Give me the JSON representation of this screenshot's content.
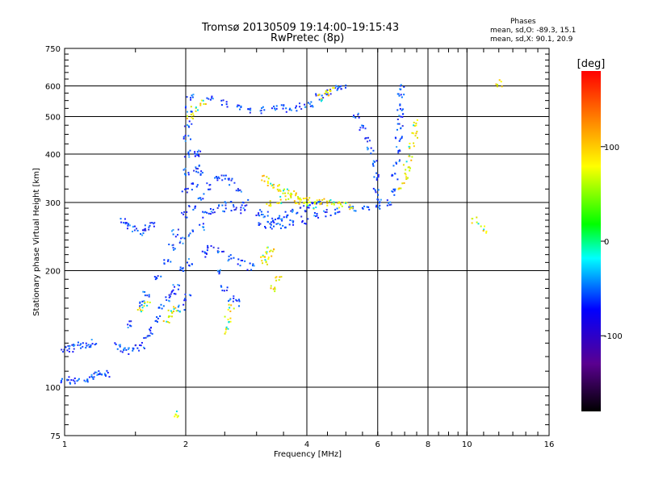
{
  "title": "Tromsø 20130509 19:14:00–19:15:43",
  "subtitle": "RwPretec (8p)",
  "stats": {
    "heading": "Phases",
    "o_line": "mean, sd,O: -89.3, 15.1",
    "x_line": "mean, sd,X:  90.1, 20.9"
  },
  "chart_data": {
    "type": "scatter",
    "xlabel": "Frequency [MHz]",
    "ylabel": "Stationary phase Virtual Height [km]",
    "x_scale": "log",
    "y_scale": "log",
    "xlim": [
      1,
      16
    ],
    "ylim": [
      75,
      750
    ],
    "x_ticks": [
      1,
      2,
      4,
      6,
      8,
      10,
      16
    ],
    "x_tick_labels": [
      "1",
      "2",
      "4",
      "6",
      "8",
      "10",
      "16"
    ],
    "y_ticks": [
      75,
      100,
      200,
      300,
      400,
      500,
      600,
      750
    ],
    "y_tick_labels": [
      "75",
      "100",
      "200",
      "300",
      "400",
      "500",
      "600",
      "750"
    ],
    "grid": true,
    "colorbar": {
      "label": "[deg]",
      "range": [
        -180,
        180
      ],
      "ticks": [
        100,
        0,
        -100
      ],
      "tick_labels": [
        "100",
        "0",
        "-100"
      ],
      "colors": [
        "#000000",
        "#5a0090",
        "#0000ff",
        "#00ffff",
        "#00ff00",
        "#ffff00",
        "#ff8000",
        "#ff0000"
      ]
    },
    "series": [
      {
        "name": "O",
        "color_value": -100,
        "points": [
          [
            1.0,
            125
          ],
          [
            1.03,
            126
          ],
          [
            1.06,
            127
          ],
          [
            1.1,
            128
          ],
          [
            1.14,
            129
          ],
          [
            1.18,
            130
          ],
          [
            1.0,
            103
          ],
          [
            1.04,
            104
          ],
          [
            1.08,
            104
          ],
          [
            1.12,
            105
          ],
          [
            1.16,
            106
          ],
          [
            1.2,
            107
          ],
          [
            1.24,
            108
          ],
          [
            1.28,
            108
          ],
          [
            1.35,
            128
          ],
          [
            1.4,
            125
          ],
          [
            1.45,
            124
          ],
          [
            1.5,
            126
          ],
          [
            1.55,
            128
          ],
          [
            1.6,
            133
          ],
          [
            1.65,
            140
          ],
          [
            1.7,
            150
          ],
          [
            1.75,
            160
          ],
          [
            1.8,
            170
          ],
          [
            1.85,
            175
          ],
          [
            1.9,
            180
          ],
          [
            1.45,
            145
          ],
          [
            1.55,
            165
          ],
          [
            1.6,
            175
          ],
          [
            1.7,
            190
          ],
          [
            1.8,
            210
          ],
          [
            1.85,
            230
          ],
          [
            1.88,
            250
          ],
          [
            1.4,
            268
          ],
          [
            1.45,
            262
          ],
          [
            1.5,
            256
          ],
          [
            1.55,
            252
          ],
          [
            1.6,
            258
          ],
          [
            1.65,
            265
          ],
          [
            1.95,
            160
          ],
          [
            1.96,
            200
          ],
          [
            1.97,
            240
          ],
          [
            1.98,
            280
          ],
          [
            1.99,
            320
          ],
          [
            2.0,
            360
          ],
          [
            2.01,
            400
          ],
          [
            2.02,
            440
          ],
          [
            2.03,
            480
          ],
          [
            2.04,
            520
          ],
          [
            2.05,
            560
          ],
          [
            2.02,
            170
          ],
          [
            2.04,
            210
          ],
          [
            2.06,
            250
          ],
          [
            2.08,
            290
          ],
          [
            2.1,
            330
          ],
          [
            2.12,
            370
          ],
          [
            2.14,
            400
          ],
          [
            2.16,
            360
          ],
          [
            2.18,
            310
          ],
          [
            2.2,
            260
          ],
          [
            2.22,
            220
          ],
          [
            2.25,
            280
          ],
          [
            2.35,
            285
          ],
          [
            2.45,
            290
          ],
          [
            2.55,
            295
          ],
          [
            2.65,
            290
          ],
          [
            2.75,
            285
          ],
          [
            2.3,
            330
          ],
          [
            2.4,
            345
          ],
          [
            2.5,
            350
          ],
          [
            2.6,
            340
          ],
          [
            2.7,
            320
          ],
          [
            2.8,
            300
          ],
          [
            2.3,
            230
          ],
          [
            2.45,
            225
          ],
          [
            2.6,
            215
          ],
          [
            2.75,
            210
          ],
          [
            2.9,
            205
          ],
          [
            2.4,
            200
          ],
          [
            2.5,
            180
          ],
          [
            2.6,
            170
          ],
          [
            2.7,
            165
          ],
          [
            3.05,
            282
          ],
          [
            3.15,
            278
          ],
          [
            3.25,
            272
          ],
          [
            3.35,
            268
          ],
          [
            3.45,
            275
          ],
          [
            3.6,
            280
          ],
          [
            3.75,
            285
          ],
          [
            3.9,
            290
          ],
          [
            4.1,
            295
          ],
          [
            4.3,
            300
          ],
          [
            3.1,
            262
          ],
          [
            3.3,
            260
          ],
          [
            3.5,
            262
          ],
          [
            3.7,
            266
          ],
          [
            3.95,
            270
          ],
          [
            4.2,
            276
          ],
          [
            4.5,
            282
          ],
          [
            4.8,
            285
          ],
          [
            5.2,
            288
          ],
          [
            5.6,
            292
          ],
          [
            6.0,
            295
          ],
          [
            3.1,
            520
          ],
          [
            3.3,
            522
          ],
          [
            3.5,
            525
          ],
          [
            3.7,
            528
          ],
          [
            3.9,
            530
          ],
          [
            4.1,
            535
          ],
          [
            4.3,
            560
          ],
          [
            4.5,
            580
          ],
          [
            4.7,
            590
          ],
          [
            4.9,
            600
          ],
          [
            5.3,
            500
          ],
          [
            5.5,
            470
          ],
          [
            5.65,
            440
          ],
          [
            5.75,
            410
          ],
          [
            5.85,
            380
          ],
          [
            5.92,
            350
          ],
          [
            5.97,
            320
          ],
          [
            6.0,
            300
          ],
          [
            6.4,
            300
          ],
          [
            6.5,
            320
          ],
          [
            6.6,
            350
          ],
          [
            6.68,
            380
          ],
          [
            6.74,
            410
          ],
          [
            6.78,
            440
          ],
          [
            6.8,
            470
          ],
          [
            6.82,
            500
          ],
          [
            6.84,
            530
          ],
          [
            6.86,
            560
          ],
          [
            6.88,
            600
          ],
          [
            2.15,
            400
          ],
          [
            2.3,
            560
          ],
          [
            2.5,
            540
          ],
          [
            2.7,
            530
          ],
          [
            2.85,
            520
          ]
        ]
      },
      {
        "name": "X",
        "color_value": 100,
        "points": [
          [
            3.15,
            345
          ],
          [
            3.25,
            335
          ],
          [
            3.35,
            330
          ],
          [
            3.45,
            325
          ],
          [
            3.55,
            320
          ],
          [
            3.7,
            315
          ],
          [
            3.85,
            310
          ],
          [
            4.0,
            305
          ],
          [
            3.2,
            300
          ],
          [
            3.4,
            305
          ],
          [
            3.6,
            310
          ],
          [
            3.8,
            300
          ],
          [
            4.0,
            298
          ],
          [
            4.2,
            295
          ],
          [
            4.3,
            300
          ],
          [
            4.5,
            300
          ],
          [
            4.7,
            298
          ],
          [
            4.9,
            296
          ],
          [
            5.1,
            294
          ],
          [
            3.1,
            215
          ],
          [
            3.15,
            210
          ],
          [
            3.2,
            220
          ],
          [
            3.25,
            225
          ],
          [
            4.3,
            560
          ],
          [
            4.45,
            575
          ],
          [
            4.6,
            585
          ],
          [
            6.9,
            330
          ],
          [
            7.0,
            350
          ],
          [
            7.1,
            370
          ],
          [
            7.2,
            390
          ],
          [
            7.3,
            420
          ],
          [
            7.4,
            450
          ],
          [
            7.5,
            480
          ],
          [
            2.05,
            500
          ],
          [
            2.1,
            520
          ],
          [
            2.2,
            540
          ],
          [
            1.8,
            150
          ],
          [
            1.85,
            155
          ],
          [
            1.9,
            160
          ],
          [
            1.55,
            160
          ],
          [
            1.6,
            165
          ],
          [
            2.5,
            140
          ],
          [
            2.55,
            150
          ],
          [
            2.6,
            160
          ],
          [
            3.3,
            180
          ],
          [
            3.4,
            190
          ],
          [
            1.9,
            85
          ],
          [
            10.5,
            270
          ],
          [
            11.0,
            255
          ],
          [
            12.0,
            610
          ]
        ]
      }
    ]
  }
}
